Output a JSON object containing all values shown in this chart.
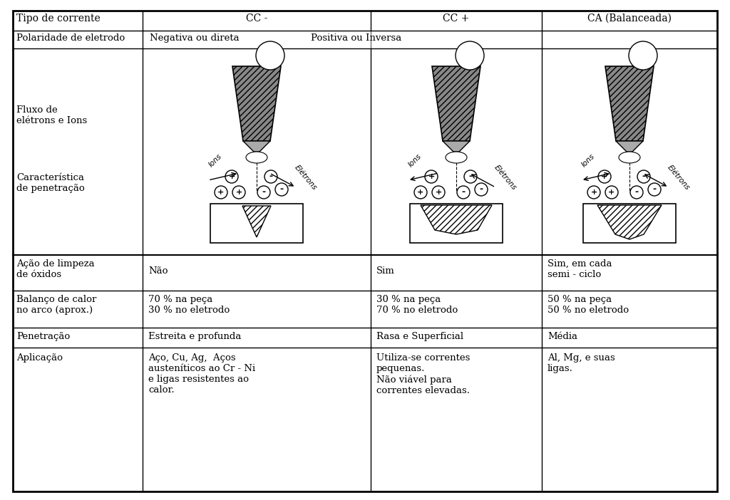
{
  "title": "Tipo de corrente",
  "col_headers": [
    "Tipo de corrente",
    "CC -",
    "CC +",
    "CA (Balanceada)"
  ],
  "row2": [
    "Polaridade de eletrodo",
    "Negativa ou direta",
    "Positiva ou Inversa",
    ""
  ],
  "row_labels": [
    "Fluxo de\nelétrons e Ions",
    "Característica\nde penetração",
    "Ação de limpeza\nde óxidos",
    "Balanço de calor\nno arco (aprox.)",
    "Penetração",
    "Aplicação"
  ],
  "data": {
    "acao_limpeza": [
      "Não",
      "Sim",
      "Sim, em cada\nsemi - ciclo"
    ],
    "balanco_calor": [
      "70 % na peça\n30 % no eletrodo",
      "30 % na peça\n70 % no eletrodo",
      "50 % na peça\n50 % no eletrodo"
    ],
    "penetracao": [
      "Estreita e profunda",
      "Rasa e Superficial",
      "Média"
    ],
    "aplicacao": [
      "Aço, Cu, Ag,  Aços\nausteníticos ao Cr - Ni\ne ligas resistentes ao\ncalor.",
      "Utiliza-se correntes\npequenas.\nNão viável para\ncorrentes elevadas.",
      "Al, Mg, e suas\nligas."
    ]
  },
  "bg_color": "#ffffff",
  "border_color": "#000000",
  "text_color": "#000000",
  "font_size": 9,
  "header_font_size": 10
}
